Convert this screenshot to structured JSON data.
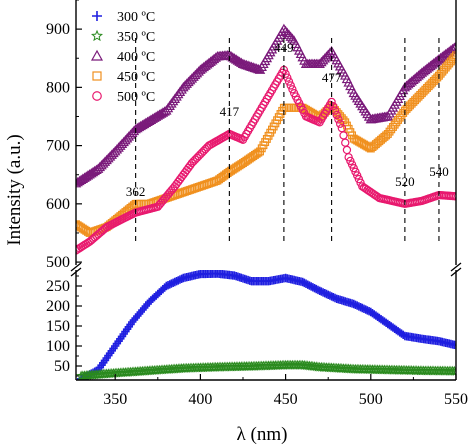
{
  "chart_data": {
    "type": "scatter",
    "xlabel": "λ (nm)",
    "ylabel": "Intensity (a.u.)",
    "xlim": [
      327,
      550
    ],
    "x_ticks": [
      350,
      400,
      450,
      500,
      550
    ],
    "broken_y_axis": true,
    "upper_panel": {
      "ylim": [
        495,
        950
      ],
      "y_ticks": [
        500,
        600,
        700,
        800,
        900
      ]
    },
    "lower_panel": {
      "ylim": [
        15,
        290
      ],
      "y_ticks": [
        50,
        100,
        150,
        200,
        250
      ]
    },
    "legend": {
      "position": "top-left"
    },
    "series": [
      {
        "name": "300 ºC",
        "panel": "lower",
        "marker": "plus",
        "color": "#1f1fe0",
        "points": [
          [
            330,
            18
          ],
          [
            340,
            40
          ],
          [
            350,
            100
          ],
          [
            360,
            160
          ],
          [
            370,
            210
          ],
          [
            380,
            250
          ],
          [
            390,
            270
          ],
          [
            400,
            280
          ],
          [
            410,
            281
          ],
          [
            420,
            276
          ],
          [
            430,
            262
          ],
          [
            440,
            262
          ],
          [
            450,
            270
          ],
          [
            460,
            260
          ],
          [
            470,
            238
          ],
          [
            480,
            218
          ],
          [
            490,
            205
          ],
          [
            500,
            185
          ],
          [
            510,
            155
          ],
          [
            520,
            125
          ],
          [
            530,
            118
          ],
          [
            540,
            112
          ],
          [
            550,
            102
          ]
        ]
      },
      {
        "name": "350 ºC",
        "panel": "lower",
        "marker": "star",
        "color": "#2a8a1e",
        "points": [
          [
            330,
            25
          ],
          [
            350,
            32
          ],
          [
            370,
            38
          ],
          [
            390,
            44
          ],
          [
            410,
            47
          ],
          [
            430,
            49
          ],
          [
            450,
            52
          ],
          [
            460,
            52
          ],
          [
            470,
            47
          ],
          [
            490,
            42
          ],
          [
            510,
            40
          ],
          [
            530,
            38
          ],
          [
            550,
            37
          ]
        ]
      },
      {
        "name": "400 ºC",
        "panel": "upper",
        "marker": "triangle",
        "color": "#7a1a7a",
        "points": [
          [
            327,
            635
          ],
          [
            340,
            660
          ],
          [
            350,
            690
          ],
          [
            362,
            728
          ],
          [
            380,
            760
          ],
          [
            390,
            800
          ],
          [
            400,
            830
          ],
          [
            410,
            853
          ],
          [
            417,
            855
          ],
          [
            425,
            840
          ],
          [
            435,
            830
          ],
          [
            449,
            900
          ],
          [
            455,
            880
          ],
          [
            462,
            840
          ],
          [
            470,
            840
          ],
          [
            477,
            862
          ],
          [
            485,
            820
          ],
          [
            490,
            790
          ],
          [
            500,
            745
          ],
          [
            510,
            750
          ],
          [
            520,
            800
          ],
          [
            530,
            825
          ],
          [
            540,
            848
          ],
          [
            550,
            870
          ]
        ]
      },
      {
        "name": "450 ºC",
        "panel": "upper",
        "marker": "square",
        "color": "#f0901e",
        "points": [
          [
            327,
            565
          ],
          [
            335,
            550
          ],
          [
            345,
            560
          ],
          [
            362,
            600
          ],
          [
            370,
            600
          ],
          [
            380,
            610
          ],
          [
            390,
            620
          ],
          [
            400,
            630
          ],
          [
            410,
            640
          ],
          [
            417,
            655
          ],
          [
            425,
            670
          ],
          [
            435,
            690
          ],
          [
            449,
            765
          ],
          [
            460,
            765
          ],
          [
            470,
            748
          ],
          [
            477,
            768
          ],
          [
            485,
            740
          ],
          [
            490,
            712
          ],
          [
            500,
            695
          ],
          [
            510,
            720
          ],
          [
            520,
            760
          ],
          [
            530,
            790
          ],
          [
            540,
            820
          ],
          [
            550,
            855
          ]
        ]
      },
      {
        "name": "500 ºC",
        "panel": "upper",
        "marker": "circle",
        "color": "#e8196e",
        "points": [
          [
            327,
            520
          ],
          [
            335,
            535
          ],
          [
            345,
            560
          ],
          [
            355,
            575
          ],
          [
            362,
            585
          ],
          [
            375,
            595
          ],
          [
            385,
            630
          ],
          [
            395,
            670
          ],
          [
            405,
            700
          ],
          [
            417,
            720
          ],
          [
            425,
            710
          ],
          [
            435,
            760
          ],
          [
            449,
            830
          ],
          [
            455,
            790
          ],
          [
            462,
            750
          ],
          [
            470,
            740
          ],
          [
            477,
            775
          ],
          [
            483,
            730
          ],
          [
            487,
            680
          ],
          [
            495,
            630
          ],
          [
            505,
            610
          ],
          [
            520,
            600
          ],
          [
            530,
            605
          ],
          [
            540,
            615
          ],
          [
            550,
            613
          ]
        ]
      }
    ],
    "annotations": [
      {
        "label": "362",
        "x": 362
      },
      {
        "label": "417",
        "x": 417
      },
      {
        "label": "449",
        "x": 449
      },
      {
        "label": "477",
        "x": 477
      },
      {
        "label": "520",
        "x": 520
      },
      {
        "label": "540",
        "x": 540
      }
    ]
  }
}
